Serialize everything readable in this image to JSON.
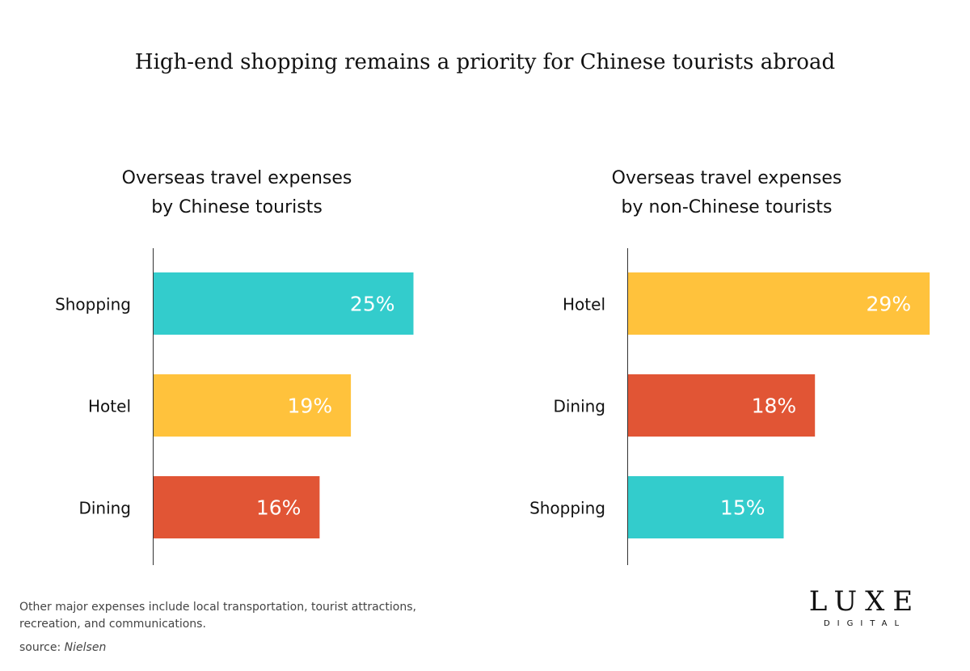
{
  "title": "High-end shopping remains a priority for Chinese tourists abroad",
  "chart_data": [
    {
      "type": "bar",
      "orientation": "horizontal",
      "title_lines": [
        "Overseas travel expenses",
        "by Chinese tourists"
      ],
      "categories": [
        "Shopping",
        "Hotel",
        "Dining"
      ],
      "values": [
        25,
        19,
        16
      ],
      "value_labels": [
        "25%",
        "19%",
        "16%"
      ],
      "colors": [
        "#33CCCC",
        "#FFC23C",
        "#E15535"
      ],
      "grid": false
    },
    {
      "type": "bar",
      "orientation": "horizontal",
      "title_lines": [
        "Overseas travel expenses",
        "by non-Chinese tourists"
      ],
      "categories": [
        "Hotel",
        "Dining",
        "Shopping"
      ],
      "values": [
        29,
        18,
        15
      ],
      "value_labels": [
        "29%",
        "18%",
        "15%"
      ],
      "colors": [
        "#FFC23C",
        "#E15535",
        "#33CCCC"
      ],
      "grid": false
    }
  ],
  "footer": {
    "note": "Other major expenses include local transportation, tourist attractions, recreation, and communications.",
    "source_prefix": "source: ",
    "source_name": "Nielsen"
  },
  "logo": {
    "line1": "LUXE",
    "line2": "DIGITAL"
  }
}
